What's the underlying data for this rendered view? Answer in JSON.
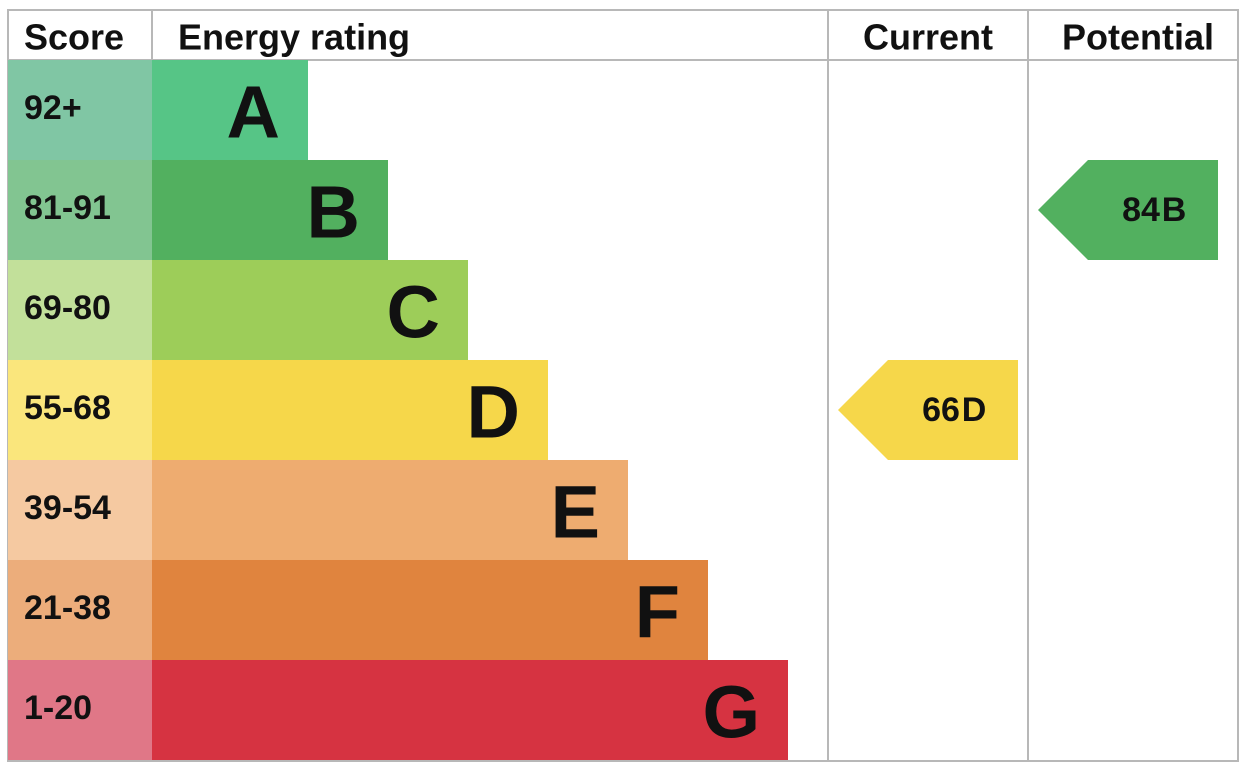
{
  "header": {
    "score": "Score",
    "rating": "Energy rating",
    "current": "Current",
    "potential": "Potential"
  },
  "bands": [
    {
      "score": "92+",
      "letter": "A",
      "color": "#56c586",
      "light": "#80c6a4"
    },
    {
      "score": "81-91",
      "letter": "B",
      "color": "#52b05f",
      "light": "#82c591"
    },
    {
      "score": "69-80",
      "letter": "C",
      "color": "#9dcd59",
      "light": "#c2e09a"
    },
    {
      "score": "55-68",
      "letter": "D",
      "color": "#f6d74a",
      "light": "#fae67c"
    },
    {
      "score": "39-54",
      "letter": "E",
      "color": "#eeac70",
      "light": "#f5c9a1"
    },
    {
      "score": "21-38",
      "letter": "F",
      "color": "#e0843e",
      "light": "#ecad7b"
    },
    {
      "score": "1-20",
      "letter": "G",
      "color": "#d63341",
      "light": "#e07787"
    }
  ],
  "current": {
    "value": 66,
    "letter": "D"
  },
  "potential": {
    "value": 84,
    "letter": "B"
  }
}
